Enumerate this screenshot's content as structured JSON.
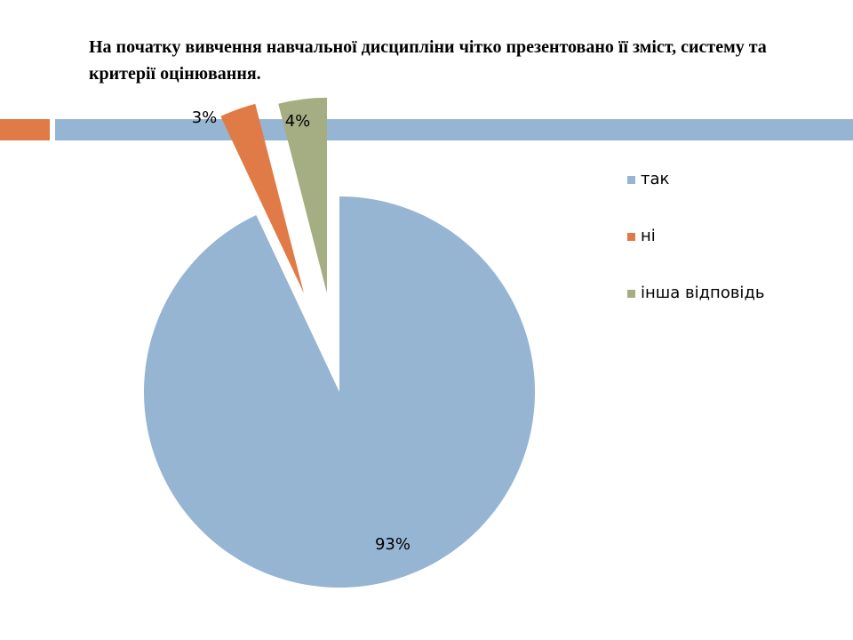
{
  "slide": {
    "title": "На початку вивчення навчальної дисципліни чітко презентовано її зміст, систему та критерії оцінювання.",
    "accent_colors": {
      "orange": "#E07B47",
      "blue": "#96B5D3"
    }
  },
  "chart_data": {
    "type": "pie",
    "categories": [
      "так",
      "ні",
      "інша відповідь"
    ],
    "values": [
      93,
      3,
      4
    ],
    "value_labels": [
      "93%",
      "3%",
      "4%"
    ],
    "colors": [
      "#96B5D3",
      "#E07B47",
      "#A5AD83"
    ],
    "exploded": true,
    "legend_position": "right"
  }
}
